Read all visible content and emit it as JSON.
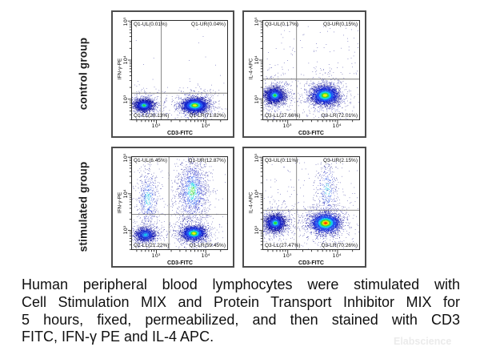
{
  "figure": {
    "rows": [
      {
        "label": "control group"
      },
      {
        "label": "stimulated group"
      }
    ],
    "watermark": "Elabscience"
  },
  "caption": {
    "lines": [
      "Human peripheral blood lymphocytes were stimulated with",
      "Cell Stimulation MIX and Protein Transport Inhibitor MIX for",
      "5 hours, fixed, permeabilized, and then stained with CD3",
      "FITC, IFN-γ PE and IL-4 APC."
    ]
  },
  "chart_data": {
    "type": "scatter",
    "subtype": "flow-cytometry-density",
    "axes": {
      "x_scale": "log",
      "y_scale": "log",
      "x_major": [
        0.26,
        0.77
      ],
      "y_major": [
        0.21,
        0.6,
        0.99
      ],
      "x_labels": [
        "10³",
        "10⁴"
      ],
      "y_labels": [
        "10³",
        "10⁴",
        "10⁵"
      ]
    },
    "palettes": {
      "hotYellow": [
        [
          0.33,
          "#f6ee12"
        ],
        [
          0.58,
          "#49dd2a"
        ],
        [
          0.92,
          "#12cfe8"
        ],
        [
          1.35,
          "#1d53f2"
        ],
        [
          2.05,
          "#1420c8"
        ],
        [
          9,
          "#0a0a96"
        ]
      ],
      "hotRed": [
        [
          0.2,
          "#ff2f00"
        ],
        [
          0.36,
          "#ff9d00"
        ],
        [
          0.52,
          "#f2ee0e"
        ],
        [
          0.78,
          "#43dc2b"
        ],
        [
          1.1,
          "#12cde9"
        ],
        [
          1.6,
          "#1d4ef0"
        ],
        [
          2.3,
          "#1420c8"
        ],
        [
          9,
          "#0a0a96"
        ]
      ],
      "greenCore": [
        [
          0.3,
          "#38dc2e"
        ],
        [
          0.55,
          "#13d2e6"
        ],
        [
          0.95,
          "#2457ee"
        ],
        [
          1.6,
          "#141dc2"
        ],
        [
          9,
          "#0a0a92"
        ]
      ],
      "coolCyan": [
        [
          0.38,
          "#15c8ea"
        ],
        [
          0.8,
          "#2d72f0"
        ],
        [
          1.4,
          "#1a2cd2"
        ],
        [
          2.2,
          "#1013ae"
        ],
        [
          9,
          "#0a0a8e"
        ]
      ],
      "plume": [
        [
          0.5,
          "#19c2e4"
        ],
        [
          1.0,
          "#2450e6"
        ],
        [
          1.7,
          "#131bb8"
        ],
        [
          9,
          "#0a0a8a"
        ]
      ],
      "sparse": [
        [
          0.8,
          "#2353e0"
        ],
        [
          1.6,
          "#121ab2"
        ],
        [
          9,
          "#0a0a8a"
        ]
      ]
    },
    "panels": [
      {
        "name": "control IFN-γ vs CD3",
        "xlabel": "CD3-FITC",
        "ylabel": "IFN-γ-PE",
        "quads": {
          "ul": "Q1-UL(0.01%)",
          "ur": "Q1-UR(0.04%)",
          "ll": "Q1-LL(28.13%)",
          "lr": "Q1-LR(71.82%)"
        },
        "gate": {
          "x": 0.31,
          "y": 0.73
        },
        "clusters": [
          {
            "cx": 0.13,
            "cy": 0.85,
            "sx": 0.11,
            "sy": 0.075,
            "n": 380,
            "palette": "sparse"
          },
          {
            "cx": 0.655,
            "cy": 0.85,
            "sx": 0.13,
            "sy": 0.085,
            "n": 560,
            "palette": "sparse"
          },
          {
            "cx": 0.13,
            "cy": 0.85,
            "sx": 0.05,
            "sy": 0.03,
            "n": 2400,
            "palette": "greenCore"
          },
          {
            "cx": 0.655,
            "cy": 0.85,
            "sx": 0.062,
            "sy": 0.033,
            "n": 4200,
            "palette": "hotYellow"
          },
          {
            "uniform": true,
            "x0": 0.02,
            "x1": 0.98,
            "y0": 0.02,
            "y1": 0.7,
            "n": 18,
            "palette": "sparse"
          }
        ]
      },
      {
        "name": "control IL-4 vs CD3",
        "xlabel": "CD3-FITC",
        "ylabel": "IL-4-APC",
        "quads": {
          "ul": "Q3-UL(0.17%)",
          "ur": "Q3-UR(0.15%)",
          "ll": "Q3-LL(27.66%)",
          "lr": "Q3-LR(72.01%)"
        },
        "gate": {
          "x": 0.35,
          "y": 0.59
        },
        "clusters": [
          {
            "cx": 0.125,
            "cy": 0.75,
            "sx": 0.11,
            "sy": 0.1,
            "n": 430,
            "palette": "sparse"
          },
          {
            "cx": 0.64,
            "cy": 0.75,
            "sx": 0.14,
            "sy": 0.11,
            "n": 620,
            "palette": "sparse"
          },
          {
            "cx": 0.125,
            "cy": 0.75,
            "sx": 0.05,
            "sy": 0.04,
            "n": 2600,
            "palette": "greenCore"
          },
          {
            "cx": 0.64,
            "cy": 0.75,
            "sx": 0.066,
            "sy": 0.044,
            "n": 4300,
            "palette": "hotYellow"
          },
          {
            "uniform": true,
            "x0": 0.02,
            "x1": 0.98,
            "y0": 0.05,
            "y1": 0.55,
            "n": 90,
            "palette": "sparse"
          }
        ]
      },
      {
        "name": "stimulated IFN-γ vs CD3",
        "xlabel": "CD3-FITC",
        "ylabel": "IFN-γ-PE",
        "quads": {
          "ul": "Q1-UL(6.45%)",
          "ur": "Q1-UR(12.87%)",
          "ll": "Q1-LL(21.22%)",
          "lr": "Q1-LR(59.45%)"
        },
        "gate": {
          "x": 0.39,
          "y": 0.62
        },
        "clusters": [
          {
            "cx": 0.145,
            "cy": 0.835,
            "sx": 0.1,
            "sy": 0.08,
            "n": 320,
            "palette": "sparse"
          },
          {
            "cx": 0.645,
            "cy": 0.82,
            "sx": 0.12,
            "sy": 0.09,
            "n": 520,
            "palette": "sparse"
          },
          {
            "cx": 0.17,
            "cy": 0.45,
            "sx": 0.055,
            "sy": 0.15,
            "n": 620,
            "palette": "plume"
          },
          {
            "cx": 0.63,
            "cy": 0.37,
            "sx": 0.082,
            "sy": 0.17,
            "n": 1500,
            "palette": "greenCore"
          },
          {
            "cx": 0.145,
            "cy": 0.835,
            "sx": 0.048,
            "sy": 0.034,
            "n": 1700,
            "palette": "coolCyan"
          },
          {
            "cx": 0.645,
            "cy": 0.82,
            "sx": 0.058,
            "sy": 0.036,
            "n": 3000,
            "palette": "hotYellow"
          },
          {
            "uniform": true,
            "x0": 0.02,
            "x1": 0.98,
            "y0": 0.02,
            "y1": 0.98,
            "n": 150,
            "palette": "sparse"
          }
        ]
      },
      {
        "name": "stimulated IL-4 vs CD3",
        "xlabel": "CD3-FITC",
        "ylabel": "IL-4-APC",
        "quads": {
          "ul": "Q3-UL(0.11%)",
          "ur": "Q3-UR(2.15%)",
          "ll": "Q3-LL(27.47%)",
          "lr": "Q3-LR(70.26%)"
        },
        "gate": {
          "x": 0.35,
          "y": 0.575
        },
        "clusters": [
          {
            "cx": 0.13,
            "cy": 0.71,
            "sx": 0.115,
            "sy": 0.105,
            "n": 470,
            "palette": "sparse"
          },
          {
            "cx": 0.645,
            "cy": 0.71,
            "sx": 0.145,
            "sy": 0.115,
            "n": 680,
            "palette": "sparse"
          },
          {
            "cx": 0.66,
            "cy": 0.36,
            "sx": 0.055,
            "sy": 0.145,
            "n": 400,
            "palette": "plume"
          },
          {
            "cx": 0.13,
            "cy": 0.71,
            "sx": 0.052,
            "sy": 0.046,
            "n": 2700,
            "palette": "greenCore"
          },
          {
            "cx": 0.645,
            "cy": 0.71,
            "sx": 0.068,
            "sy": 0.048,
            "n": 4600,
            "palette": "hotRed"
          },
          {
            "uniform": true,
            "x0": 0.02,
            "x1": 0.98,
            "y0": 0.02,
            "y1": 0.55,
            "n": 100,
            "palette": "sparse"
          }
        ]
      }
    ]
  }
}
